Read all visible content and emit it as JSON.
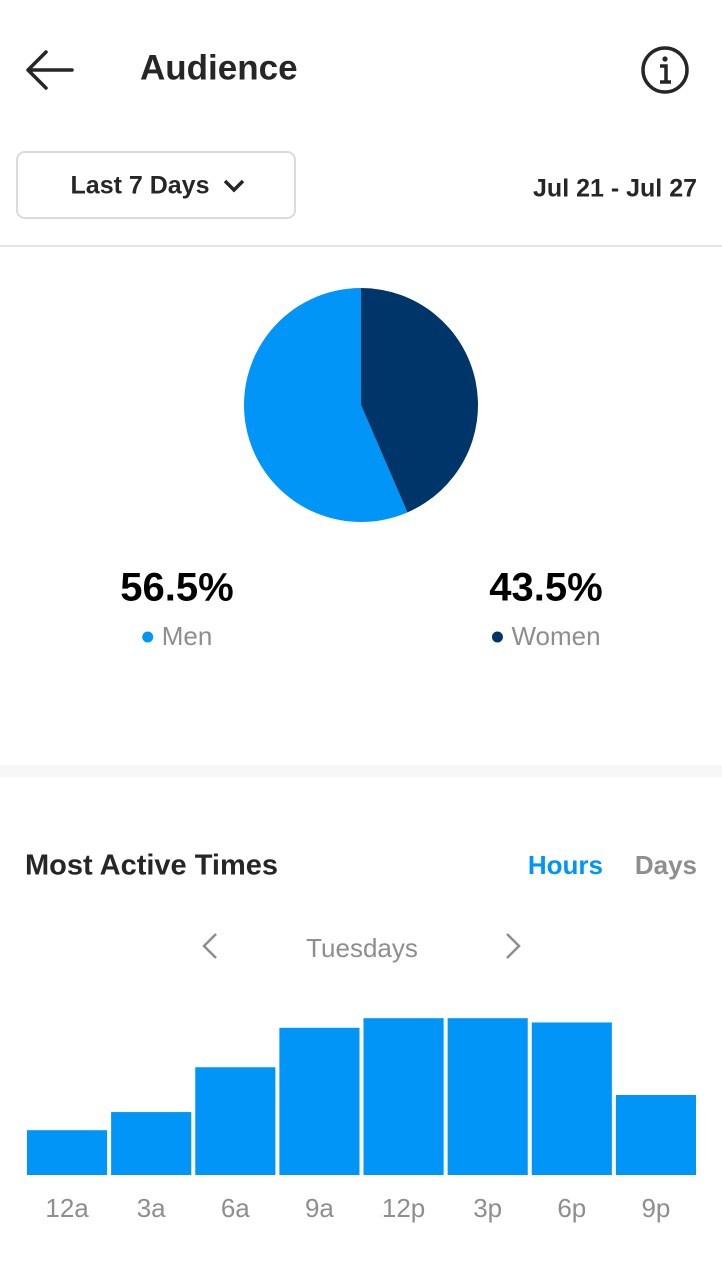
{
  "header": {
    "title": "Audience"
  },
  "filter": {
    "period": "Last 7 Days",
    "date_range": "Jul 21 - Jul 27"
  },
  "chart_data": [
    {
      "type": "pie",
      "categories": [
        "Men",
        "Women"
      ],
      "values": [
        56.5,
        43.5
      ],
      "value_labels": [
        "56.5%",
        "43.5%"
      ],
      "colors": [
        "#0095f6",
        "#003569"
      ]
    },
    {
      "type": "bar",
      "title": "Most Active Times",
      "categories": [
        "12a",
        "3a",
        "6a",
        "9a",
        "12p",
        "3p",
        "6p",
        "9p"
      ],
      "values": [
        42,
        59,
        101,
        138,
        147,
        147,
        143,
        75
      ],
      "color": "#0095f6",
      "ylim": [
        0,
        150
      ]
    }
  ],
  "tabs": [
    "Hours",
    "Days"
  ],
  "active_tab": 0,
  "day": "Tuesdays"
}
